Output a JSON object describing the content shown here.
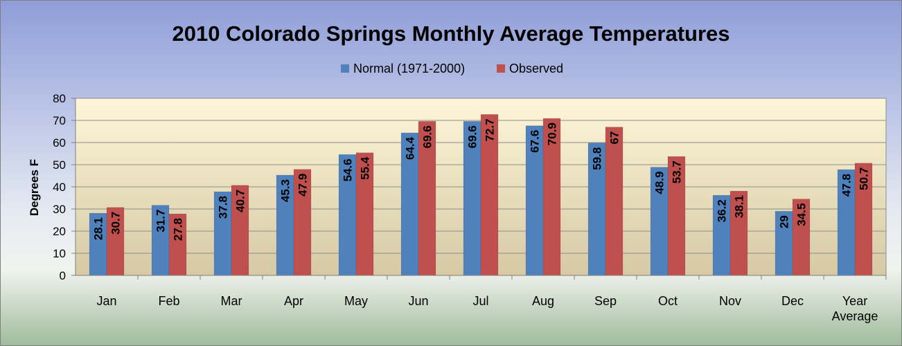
{
  "chart_data": {
    "type": "bar",
    "title": "2010 Colorado Springs Monthly Average Temperatures",
    "ylabel": "Degrees  F",
    "xlabel": "",
    "categories": [
      "Jan",
      "Feb",
      "Mar",
      "Apr",
      "May",
      "Jun",
      "Jul",
      "Aug",
      "Sep",
      "Oct",
      "Nov",
      "Dec",
      "Year Average"
    ],
    "series": [
      {
        "name": "Normal (1971-2000)",
        "color": "#4f81bd",
        "values": [
          28.1,
          31.7,
          37.8,
          45.3,
          54.6,
          64.4,
          69.6,
          67.6,
          59.8,
          48.9,
          36.2,
          29,
          47.8
        ],
        "labels": [
          "28.1",
          "31.7",
          "37.8",
          "45.3",
          "54.6",
          "64.4",
          "69.6",
          "67.6",
          "59.8",
          "48.9",
          "36.2",
          "29",
          "47.8"
        ]
      },
      {
        "name": "Observed",
        "color": "#c0504d",
        "values": [
          30.7,
          27.8,
          40.7,
          47.9,
          55.4,
          69.6,
          72.7,
          70.9,
          67,
          53.7,
          38.1,
          34.5,
          50.7
        ],
        "labels": [
          "30.7",
          "27.8",
          "40.7",
          "47.9",
          "55.4",
          "69.6",
          "72.7",
          "70.9",
          "67",
          "53.7",
          "38.1",
          "34.5",
          "50.7"
        ]
      }
    ],
    "ylim": [
      0,
      80
    ],
    "yticks": [
      0,
      10,
      20,
      30,
      40,
      50,
      60,
      70,
      80
    ],
    "grid": true,
    "legend_position": "top",
    "plot_background": [
      "#fdf6d8",
      "#d6c9a4"
    ]
  }
}
